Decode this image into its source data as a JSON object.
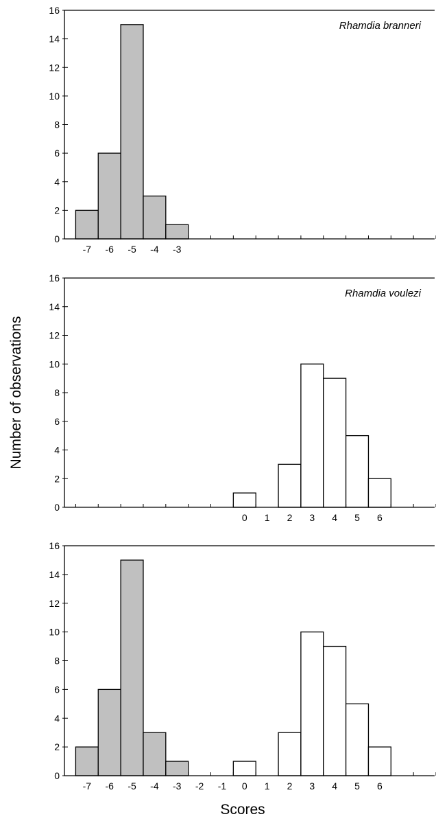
{
  "chart_data": {
    "type": "bar",
    "xlabel": "Scores",
    "ylabel": "Number of observations",
    "ylim": [
      0,
      16
    ],
    "yticks": [
      0,
      2,
      4,
      6,
      8,
      10,
      12,
      14,
      16
    ],
    "xlim": [
      -8,
      8.5
    ],
    "panels": [
      {
        "annotation": "Rhamdia branneri",
        "xticks": [
          "-7",
          "-6",
          "-5",
          "-4",
          "-3"
        ],
        "series": [
          {
            "fill": "#c0c0c0",
            "bins": [
              -7,
              -6,
              -5,
              -4,
              -3
            ],
            "values": [
              2,
              6,
              15,
              3,
              1
            ]
          }
        ]
      },
      {
        "annotation": "Rhamdia voulezi",
        "xticks": [
          "0",
          "1",
          "2",
          "3",
          "4",
          "5",
          "6"
        ],
        "series": [
          {
            "fill": "#ffffff",
            "bins": [
              0,
              1,
              2,
              3,
              4,
              5,
              6
            ],
            "values": [
              1,
              0,
              3,
              10,
              9,
              5,
              2
            ]
          }
        ]
      },
      {
        "annotation": "",
        "xticks": [
          "-7",
          "-6",
          "-5",
          "-4",
          "-3",
          "-2",
          "-1",
          "0",
          "1",
          "2",
          "3",
          "4",
          "5",
          "6"
        ],
        "series": [
          {
            "fill": "#c0c0c0",
            "bins": [
              -7,
              -6,
              -5,
              -4,
              -3
            ],
            "values": [
              2,
              6,
              15,
              3,
              1
            ]
          },
          {
            "fill": "#ffffff",
            "bins": [
              0,
              1,
              2,
              3,
              4,
              5,
              6
            ],
            "values": [
              1,
              0,
              3,
              10,
              9,
              5,
              2
            ]
          }
        ]
      }
    ]
  }
}
